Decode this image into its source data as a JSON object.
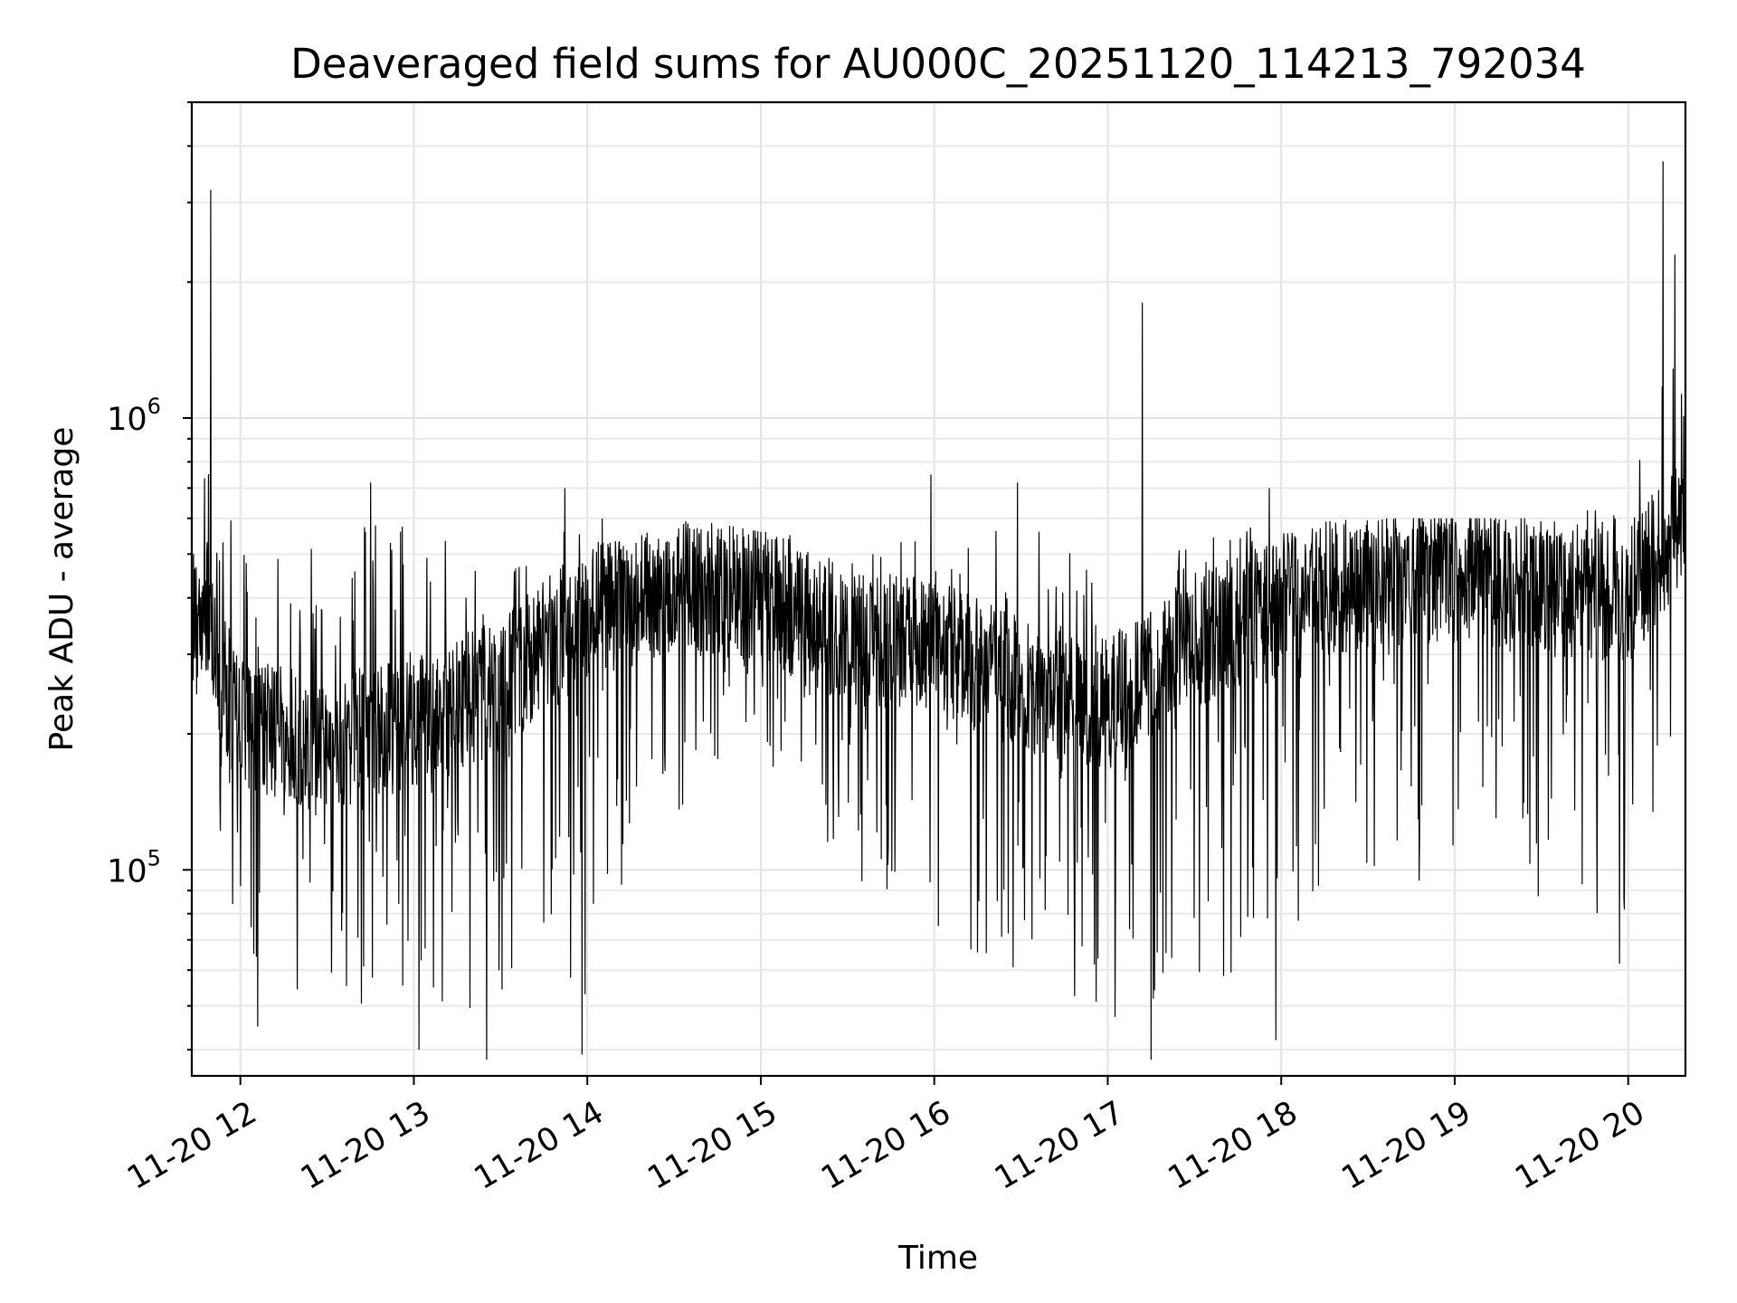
{
  "chart_data": {
    "type": "line",
    "title": "Deaveraged field sums for AU000C_20251120_114213_792034",
    "xlabel": "Time",
    "ylabel": "Peak ADU - average",
    "yscale": "log",
    "ylim": [
      35000,
      5000000
    ],
    "xlim_hours": [
      11.72,
      20.33
    ],
    "grid": true,
    "x_ticks": [
      {
        "value": 12,
        "label": "11-20 12"
      },
      {
        "value": 13,
        "label": "11-20 13"
      },
      {
        "value": 14,
        "label": "11-20 14"
      },
      {
        "value": 15,
        "label": "11-20 15"
      },
      {
        "value": 16,
        "label": "11-20 16"
      },
      {
        "value": 17,
        "label": "11-20 17"
      },
      {
        "value": 18,
        "label": "11-20 18"
      },
      {
        "value": 19,
        "label": "11-20 19"
      },
      {
        "value": 20,
        "label": "11-20 20"
      }
    ],
    "y_ticks": [
      {
        "value": 100000,
        "base": "10",
        "exp": "5"
      },
      {
        "value": 1000000,
        "base": "10",
        "exp": "6"
      }
    ],
    "series": [
      {
        "name": "field sums",
        "color": "#000000",
        "envelope": [
          {
            "t": 11.72,
            "base": 380000,
            "low": 250000,
            "high": 700000
          },
          {
            "t": 11.85,
            "base": 300000,
            "low": 120000,
            "high": 900000
          },
          {
            "t": 12.0,
            "base": 210000,
            "low": 60000,
            "high": 540000
          },
          {
            "t": 12.5,
            "base": 190000,
            "low": 50000,
            "high": 600000
          },
          {
            "t": 13.0,
            "base": 210000,
            "low": 42000,
            "high": 600000
          },
          {
            "t": 13.5,
            "base": 260000,
            "low": 40000,
            "high": 600000
          },
          {
            "t": 14.0,
            "base": 370000,
            "low": 45000,
            "high": 620000
          },
          {
            "t": 14.3,
            "base": 400000,
            "low": 120000,
            "high": 560000
          },
          {
            "t": 14.6,
            "base": 420000,
            "low": 140000,
            "high": 600000
          },
          {
            "t": 15.0,
            "base": 410000,
            "low": 180000,
            "high": 560000
          },
          {
            "t": 15.5,
            "base": 330000,
            "low": 100000,
            "high": 560000
          },
          {
            "t": 16.0,
            "base": 310000,
            "low": 70000,
            "high": 600000
          },
          {
            "t": 16.5,
            "base": 260000,
            "low": 60000,
            "high": 560000
          },
          {
            "t": 17.0,
            "base": 230000,
            "low": 45000,
            "high": 600000
          },
          {
            "t": 17.5,
            "base": 320000,
            "low": 50000,
            "high": 560000
          },
          {
            "t": 18.0,
            "base": 400000,
            "low": 70000,
            "high": 580000
          },
          {
            "t": 18.5,
            "base": 440000,
            "low": 100000,
            "high": 600000
          },
          {
            "t": 19.0,
            "base": 450000,
            "low": 90000,
            "high": 600000
          },
          {
            "t": 19.5,
            "base": 420000,
            "low": 80000,
            "high": 600000
          },
          {
            "t": 20.0,
            "base": 400000,
            "low": 70000,
            "high": 650000
          },
          {
            "t": 20.33,
            "base": 600000,
            "low": 250000,
            "high": 2200000
          }
        ],
        "spikes": [
          {
            "t": 11.83,
            "value": 3200000
          },
          {
            "t": 12.75,
            "value": 720000
          },
          {
            "t": 13.87,
            "value": 700000
          },
          {
            "t": 15.98,
            "value": 750000
          },
          {
            "t": 16.48,
            "value": 720000
          },
          {
            "t": 17.2,
            "value": 1800000
          },
          {
            "t": 17.93,
            "value": 700000
          },
          {
            "t": 20.2,
            "value": 3700000
          },
          {
            "t": 20.27,
            "value": 2300000
          }
        ],
        "dips": [
          {
            "t": 12.1,
            "value": 45000
          },
          {
            "t": 13.03,
            "value": 40000
          },
          {
            "t": 13.42,
            "value": 38000
          },
          {
            "t": 13.97,
            "value": 39000
          },
          {
            "t": 17.25,
            "value": 38000
          },
          {
            "t": 17.97,
            "value": 42000
          },
          {
            "t": 19.95,
            "value": 62000
          }
        ]
      }
    ]
  }
}
